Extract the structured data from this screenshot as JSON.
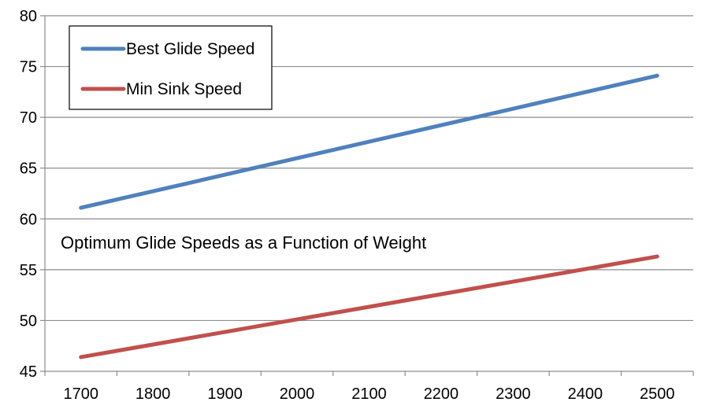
{
  "chart_data": {
    "type": "line",
    "title": "",
    "annotation": "Optimum Glide Speeds as a Function of Weight",
    "xlabel": "",
    "ylabel": "",
    "x_ticks": [
      "1700",
      "1800",
      "1900",
      "2000",
      "2100",
      "2200",
      "2300",
      "2400",
      "2500"
    ],
    "y_ticks": [
      "45",
      "50",
      "55",
      "60",
      "65",
      "70",
      "75",
      "80"
    ],
    "xlim": [
      1650,
      2550
    ],
    "ylim": [
      45,
      80
    ],
    "grid": "horizontal",
    "legend_position": "top-left",
    "series": [
      {
        "name": "Best Glide Speed",
        "color": "#4F81BD",
        "x": [
          1700,
          2500
        ],
        "y": [
          61.1,
          74.1
        ]
      },
      {
        "name": "Min Sink Speed",
        "color": "#C0504D",
        "x": [
          1700,
          2500
        ],
        "y": [
          46.4,
          56.3
        ]
      }
    ]
  }
}
